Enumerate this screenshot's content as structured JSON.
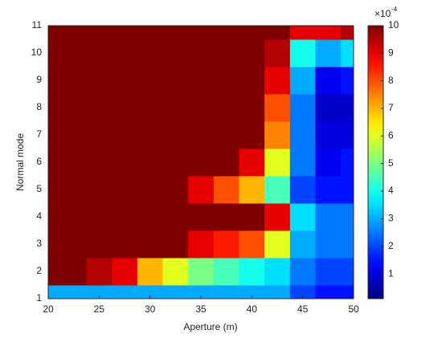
{
  "chart_data": {
    "type": "heatmap",
    "xlabel": "Aperture (m)",
    "ylabel": "Normal mode",
    "x": [
      20,
      22.5,
      25,
      27.5,
      30,
      32.5,
      35,
      37.5,
      40,
      42.5,
      45,
      47.5,
      50
    ],
    "y": [
      1,
      2,
      3,
      4,
      5,
      6,
      7,
      8,
      9,
      10,
      11
    ],
    "values": [
      [
        3,
        3,
        3,
        3,
        3,
        3,
        3,
        3,
        3,
        3,
        2,
        1.5,
        1.5
      ],
      [
        10,
        10,
        9.5,
        9,
        7,
        6,
        5,
        4.5,
        4,
        3.5,
        2.5,
        2,
        2
      ],
      [
        10,
        10,
        10,
        10,
        10,
        10,
        9,
        8.5,
        8,
        6,
        3,
        2.5,
        2.5
      ],
      [
        10,
        10,
        10,
        10,
        10,
        10,
        10,
        10,
        10,
        9,
        3.5,
        2.5,
        2.5
      ],
      [
        10,
        10,
        10,
        10,
        10,
        10,
        9,
        8,
        7,
        4.5,
        2,
        1.5,
        1.5
      ],
      [
        10,
        10,
        10,
        10,
        10,
        10,
        10,
        10,
        9,
        6,
        2.5,
        1.2,
        1.5
      ],
      [
        10,
        10,
        10,
        10,
        10,
        10,
        10,
        10,
        10,
        7.5,
        2.5,
        1,
        1
      ],
      [
        10,
        10,
        10,
        10,
        10,
        10,
        10,
        10,
        10,
        8,
        2.5,
        0.8,
        0.8
      ],
      [
        10,
        10,
        10,
        10,
        10,
        10,
        10,
        10,
        10,
        9,
        3,
        1.2,
        1.5
      ],
      [
        10,
        10,
        10,
        10,
        10,
        10,
        10,
        10,
        10,
        9.5,
        4,
        3,
        3.5
      ],
      [
        10,
        10,
        10,
        10,
        10,
        10,
        10,
        10,
        10,
        10,
        9,
        9,
        9.5
      ]
    ],
    "xlim": [
      20,
      50
    ],
    "xticks": [
      20,
      25,
      30,
      35,
      40,
      45,
      50
    ],
    "ylim": [
      1,
      11
    ],
    "yticks": [
      1,
      2,
      3,
      4,
      5,
      6,
      7,
      8,
      9,
      10,
      11
    ],
    "colormap": "jet",
    "clim": [
      0.1,
      10
    ],
    "cticks": [
      1,
      2,
      3,
      4,
      5,
      6,
      7,
      8,
      9,
      10
    ],
    "colorbar_base": "×10",
    "colorbar_exponent": "-4"
  }
}
